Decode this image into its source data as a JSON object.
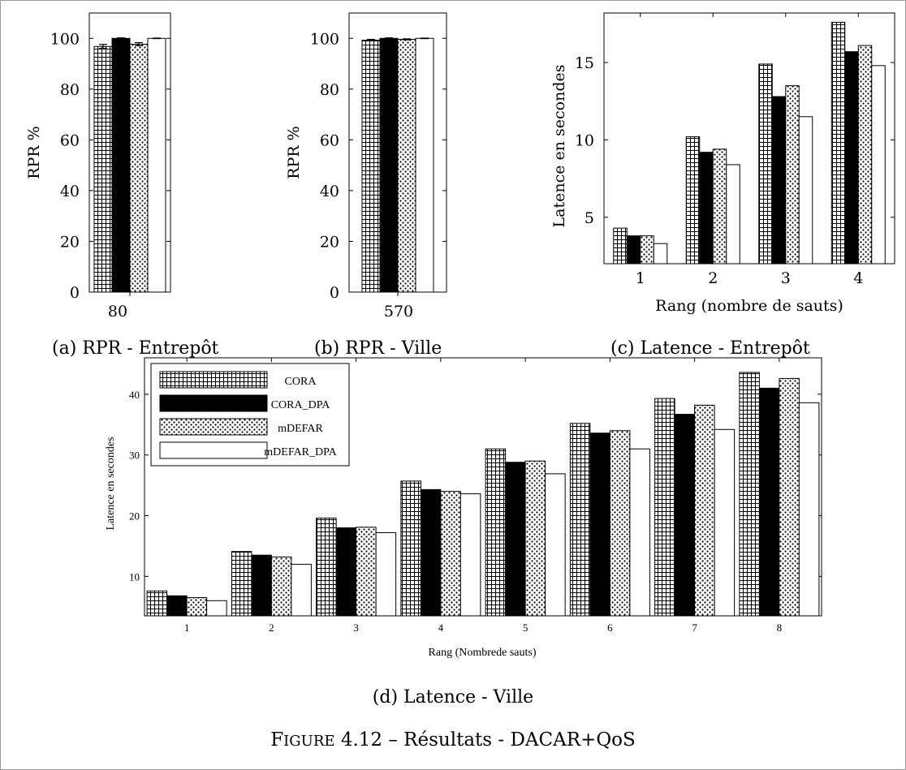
{
  "figure_caption": "Figure 4.12 – Résultats - DACAR+QoS",
  "figure_caption_sc": "Figure",
  "figure_caption_rest": " 4.12 – Résultats - DACAR+QoS",
  "legend_names": [
    "CORA",
    "CORA_DPA",
    "mDEFAR",
    "mDEFAR_DPA"
  ],
  "patterns": {
    "CORA": "grid",
    "CORA_DPA": "solid",
    "mDEFAR": "dots",
    "mDEFAR_DPA": "white"
  },
  "chart_data": [
    {
      "id": "a",
      "type": "bar",
      "caption": "(a) RPR - Entrepôt",
      "xlabel": "",
      "ylabel": "RPR %",
      "ylim": [
        0,
        110
      ],
      "yticks": [
        0,
        20,
        40,
        60,
        80,
        100
      ],
      "categories": [
        "80"
      ],
      "series": [
        {
          "name": "CORA",
          "values": [
            96.8
          ],
          "error": [
            0.8
          ]
        },
        {
          "name": "CORA_DPA",
          "values": [
            100
          ],
          "error": [
            0.2
          ]
        },
        {
          "name": "mDEFAR",
          "values": [
            97.7
          ],
          "error": [
            0.6
          ]
        },
        {
          "name": "mDEFAR_DPA",
          "values": [
            100
          ],
          "error": [
            0.1
          ]
        }
      ]
    },
    {
      "id": "b",
      "type": "bar",
      "caption": "(b) RPR - Ville",
      "xlabel": "",
      "ylabel": "RPR %",
      "ylim": [
        0,
        110
      ],
      "yticks": [
        0,
        20,
        40,
        60,
        80,
        100
      ],
      "categories": [
        "570"
      ],
      "series": [
        {
          "name": "CORA",
          "values": [
            99.3
          ],
          "error": [
            0.3
          ]
        },
        {
          "name": "CORA_DPA",
          "values": [
            100
          ],
          "error": [
            0.2
          ]
        },
        {
          "name": "mDEFAR",
          "values": [
            99.6
          ],
          "error": [
            0.2
          ]
        },
        {
          "name": "mDEFAR_DPA",
          "values": [
            100
          ],
          "error": [
            0.1
          ]
        }
      ]
    },
    {
      "id": "c",
      "type": "bar",
      "caption": "(c) Latence - Entrepôt",
      "xlabel": "Rang (nombre de sauts)",
      "ylabel": "Latence en secondes",
      "ylim": [
        2,
        18.2
      ],
      "yticks": [
        5,
        10,
        15
      ],
      "categories": [
        "1",
        "2",
        "3",
        "4"
      ],
      "series": [
        {
          "name": "CORA",
          "values": [
            4.3,
            10.2,
            14.9,
            17.6
          ]
        },
        {
          "name": "CORA_DPA",
          "values": [
            3.8,
            9.2,
            12.8,
            15.7
          ]
        },
        {
          "name": "mDEFAR",
          "values": [
            3.8,
            9.4,
            13.5,
            16.1
          ]
        },
        {
          "name": "mDEFAR_DPA",
          "values": [
            3.3,
            8.4,
            11.5,
            14.8
          ]
        }
      ]
    },
    {
      "id": "d",
      "type": "bar",
      "caption": "(d) Latence - Ville",
      "xlabel": "Rang (Nombrede sauts)",
      "ylabel": "Latence en secondes",
      "ylim": [
        3.5,
        46
      ],
      "yticks": [
        10,
        20,
        30,
        40
      ],
      "categories": [
        "1",
        "2",
        "3",
        "4",
        "5",
        "6",
        "7",
        "8"
      ],
      "series": [
        {
          "name": "CORA",
          "values": [
            7.6,
            14.1,
            19.6,
            25.7,
            31.0,
            35.2,
            39.3,
            43.6
          ]
        },
        {
          "name": "CORA_DPA",
          "values": [
            6.8,
            13.5,
            18.0,
            24.3,
            28.8,
            33.6,
            36.7,
            41.0
          ]
        },
        {
          "name": "mDEFAR",
          "values": [
            6.5,
            13.2,
            18.1,
            24.0,
            29.0,
            34.0,
            38.2,
            42.6
          ]
        },
        {
          "name": "mDEFAR_DPA",
          "values": [
            6.0,
            12.0,
            17.2,
            23.6,
            26.9,
            31.0,
            34.2,
            38.6
          ]
        }
      ]
    }
  ]
}
